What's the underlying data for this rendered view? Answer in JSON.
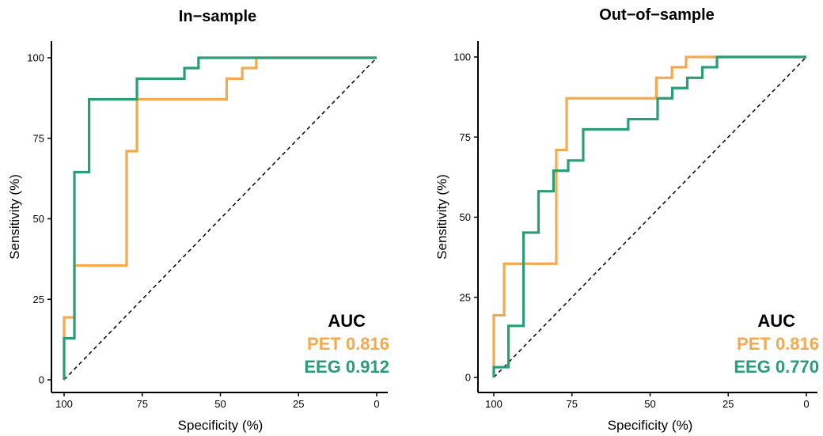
{
  "chart_data": [
    {
      "type": "line",
      "title": "In−sample",
      "xlabel": "Specificity (%)",
      "ylabel": "Sensitivity (%)",
      "xlim": [
        100,
        0
      ],
      "ylim": [
        0,
        100
      ],
      "x_ticks": [
        "100",
        "75",
        "50",
        "25",
        "0"
      ],
      "y_ticks": [
        "0",
        "25",
        "50",
        "75",
        "100"
      ],
      "grid": false,
      "diagonal": "dashed",
      "legend": {
        "heading": "AUC",
        "placement": "bottom-right",
        "items": [
          {
            "text": "PET 0.816",
            "color": "#f5a94e"
          },
          {
            "text": "EEG 0.912",
            "color": "#2a9d77"
          }
        ]
      },
      "series": [
        {
          "name": "PET",
          "color": "#f5a94e",
          "points": [
            [
              100,
              0
            ],
            [
              100,
              19.4
            ],
            [
              96.7,
              19.4
            ],
            [
              96.7,
              35.5
            ],
            [
              80,
              35.5
            ],
            [
              80,
              71
            ],
            [
              76.7,
              71
            ],
            [
              76.7,
              87.1
            ],
            [
              48,
              87.1
            ],
            [
              48,
              93.5
            ],
            [
              43,
              93.5
            ],
            [
              43,
              96.8
            ],
            [
              38.5,
              96.8
            ],
            [
              38.5,
              100
            ],
            [
              0,
              100
            ]
          ]
        },
        {
          "name": "EEG",
          "color": "#2a9d77",
          "points": [
            [
              100,
              0
            ],
            [
              100,
              12.9
            ],
            [
              96.7,
              12.9
            ],
            [
              96.7,
              64.5
            ],
            [
              92,
              64.5
            ],
            [
              92,
              87.1
            ],
            [
              76.7,
              87.1
            ],
            [
              76.7,
              93.5
            ],
            [
              61.5,
              93.5
            ],
            [
              61.5,
              96.8
            ],
            [
              57,
              96.8
            ],
            [
              57,
              100
            ],
            [
              0,
              100
            ]
          ]
        }
      ]
    },
    {
      "type": "line",
      "title": "Out−of−sample",
      "xlabel": "Specificity (%)",
      "ylabel": "Sensitivity (%)",
      "xlim": [
        100,
        0
      ],
      "ylim": [
        0,
        100
      ],
      "x_ticks": [
        "100",
        "75",
        "50",
        "25",
        "0"
      ],
      "y_ticks": [
        "0",
        "25",
        "50",
        "75",
        "100"
      ],
      "grid": false,
      "diagonal": "dashed",
      "legend": {
        "heading": "AUC",
        "placement": "bottom-right",
        "items": [
          {
            "text": "PET 0.816",
            "color": "#f5a94e"
          },
          {
            "text": "EEG 0.770",
            "color": "#2a9d77"
          }
        ]
      },
      "series": [
        {
          "name": "PET",
          "color": "#f5a94e",
          "points": [
            [
              100,
              0
            ],
            [
              100,
              19.4
            ],
            [
              96.7,
              19.4
            ],
            [
              96.7,
              35.5
            ],
            [
              80,
              35.5
            ],
            [
              80,
              71
            ],
            [
              76.7,
              71
            ],
            [
              76.7,
              87.1
            ],
            [
              48,
              87.1
            ],
            [
              48,
              93.5
            ],
            [
              43,
              93.5
            ],
            [
              43,
              96.8
            ],
            [
              38.5,
              96.8
            ],
            [
              38.5,
              100
            ],
            [
              0,
              100
            ]
          ]
        },
        {
          "name": "EEG",
          "color": "#2a9d77",
          "points": [
            [
              100,
              0
            ],
            [
              100,
              3.2
            ],
            [
              95.3,
              3.2
            ],
            [
              95.3,
              16.1
            ],
            [
              90.5,
              16.1
            ],
            [
              90.5,
              45.2
            ],
            [
              85.7,
              45.2
            ],
            [
              85.7,
              58.1
            ],
            [
              80.9,
              58.1
            ],
            [
              80.9,
              64.5
            ],
            [
              76.2,
              64.5
            ],
            [
              76.2,
              67.7
            ],
            [
              71.4,
              67.7
            ],
            [
              71.4,
              77.4
            ],
            [
              57,
              77.4
            ],
            [
              57,
              80.6
            ],
            [
              47.6,
              80.6
            ],
            [
              47.6,
              87.1
            ],
            [
              42.9,
              87.1
            ],
            [
              42.9,
              90.3
            ],
            [
              38.1,
              90.3
            ],
            [
              38.1,
              93.5
            ],
            [
              33.3,
              93.5
            ],
            [
              33.3,
              96.8
            ],
            [
              28.6,
              96.8
            ],
            [
              28.6,
              100
            ],
            [
              0,
              100
            ]
          ]
        }
      ]
    }
  ]
}
